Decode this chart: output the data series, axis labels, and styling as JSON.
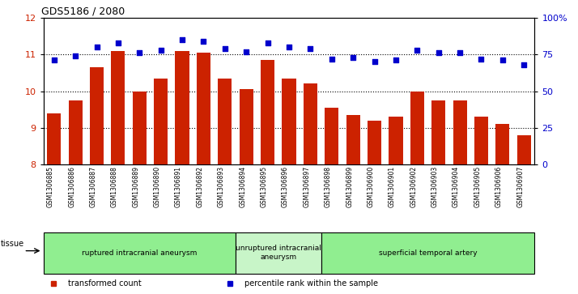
{
  "title": "GDS5186 / 2080",
  "samples": [
    "GSM1306885",
    "GSM1306886",
    "GSM1306887",
    "GSM1306888",
    "GSM1306889",
    "GSM1306890",
    "GSM1306891",
    "GSM1306892",
    "GSM1306893",
    "GSM1306894",
    "GSM1306895",
    "GSM1306896",
    "GSM1306897",
    "GSM1306898",
    "GSM1306899",
    "GSM1306900",
    "GSM1306901",
    "GSM1306902",
    "GSM1306903",
    "GSM1306904",
    "GSM1306905",
    "GSM1306906",
    "GSM1306907"
  ],
  "bar_values": [
    9.4,
    9.75,
    10.65,
    11.1,
    10.0,
    10.35,
    11.1,
    11.05,
    10.35,
    10.05,
    10.85,
    10.35,
    10.2,
    9.55,
    9.35,
    9.2,
    9.3,
    10.0,
    9.75,
    9.75,
    9.3,
    9.1,
    8.8
  ],
  "dot_values": [
    71,
    74,
    80,
    83,
    76,
    78,
    85,
    84,
    79,
    77,
    83,
    80,
    79,
    72,
    73,
    70,
    71,
    78,
    76,
    76,
    72,
    71,
    68
  ],
  "ylim_left": [
    8,
    12
  ],
  "ylim_right": [
    0,
    100
  ],
  "yticks_left": [
    8,
    9,
    10,
    11,
    12
  ],
  "yticks_right": [
    0,
    25,
    50,
    75,
    100
  ],
  "bar_color": "#cc2200",
  "dot_color": "#0000cc",
  "bg_color": "#ffffff",
  "grid_values": [
    9,
    10,
    11
  ],
  "groups": [
    {
      "label": "ruptured intracranial aneurysm",
      "start": 0,
      "end": 9,
      "color": "#90ee90"
    },
    {
      "label": "unruptured intracranial\naneurysm",
      "start": 9,
      "end": 13,
      "color": "#c8f5c8"
    },
    {
      "label": "superficial temporal artery",
      "start": 13,
      "end": 23,
      "color": "#90ee90"
    }
  ],
  "legend_items": [
    {
      "label": "transformed count",
      "color": "#cc2200"
    },
    {
      "label": "percentile rank within the sample",
      "color": "#0000cc"
    }
  ],
  "tissue_label": "tissue"
}
